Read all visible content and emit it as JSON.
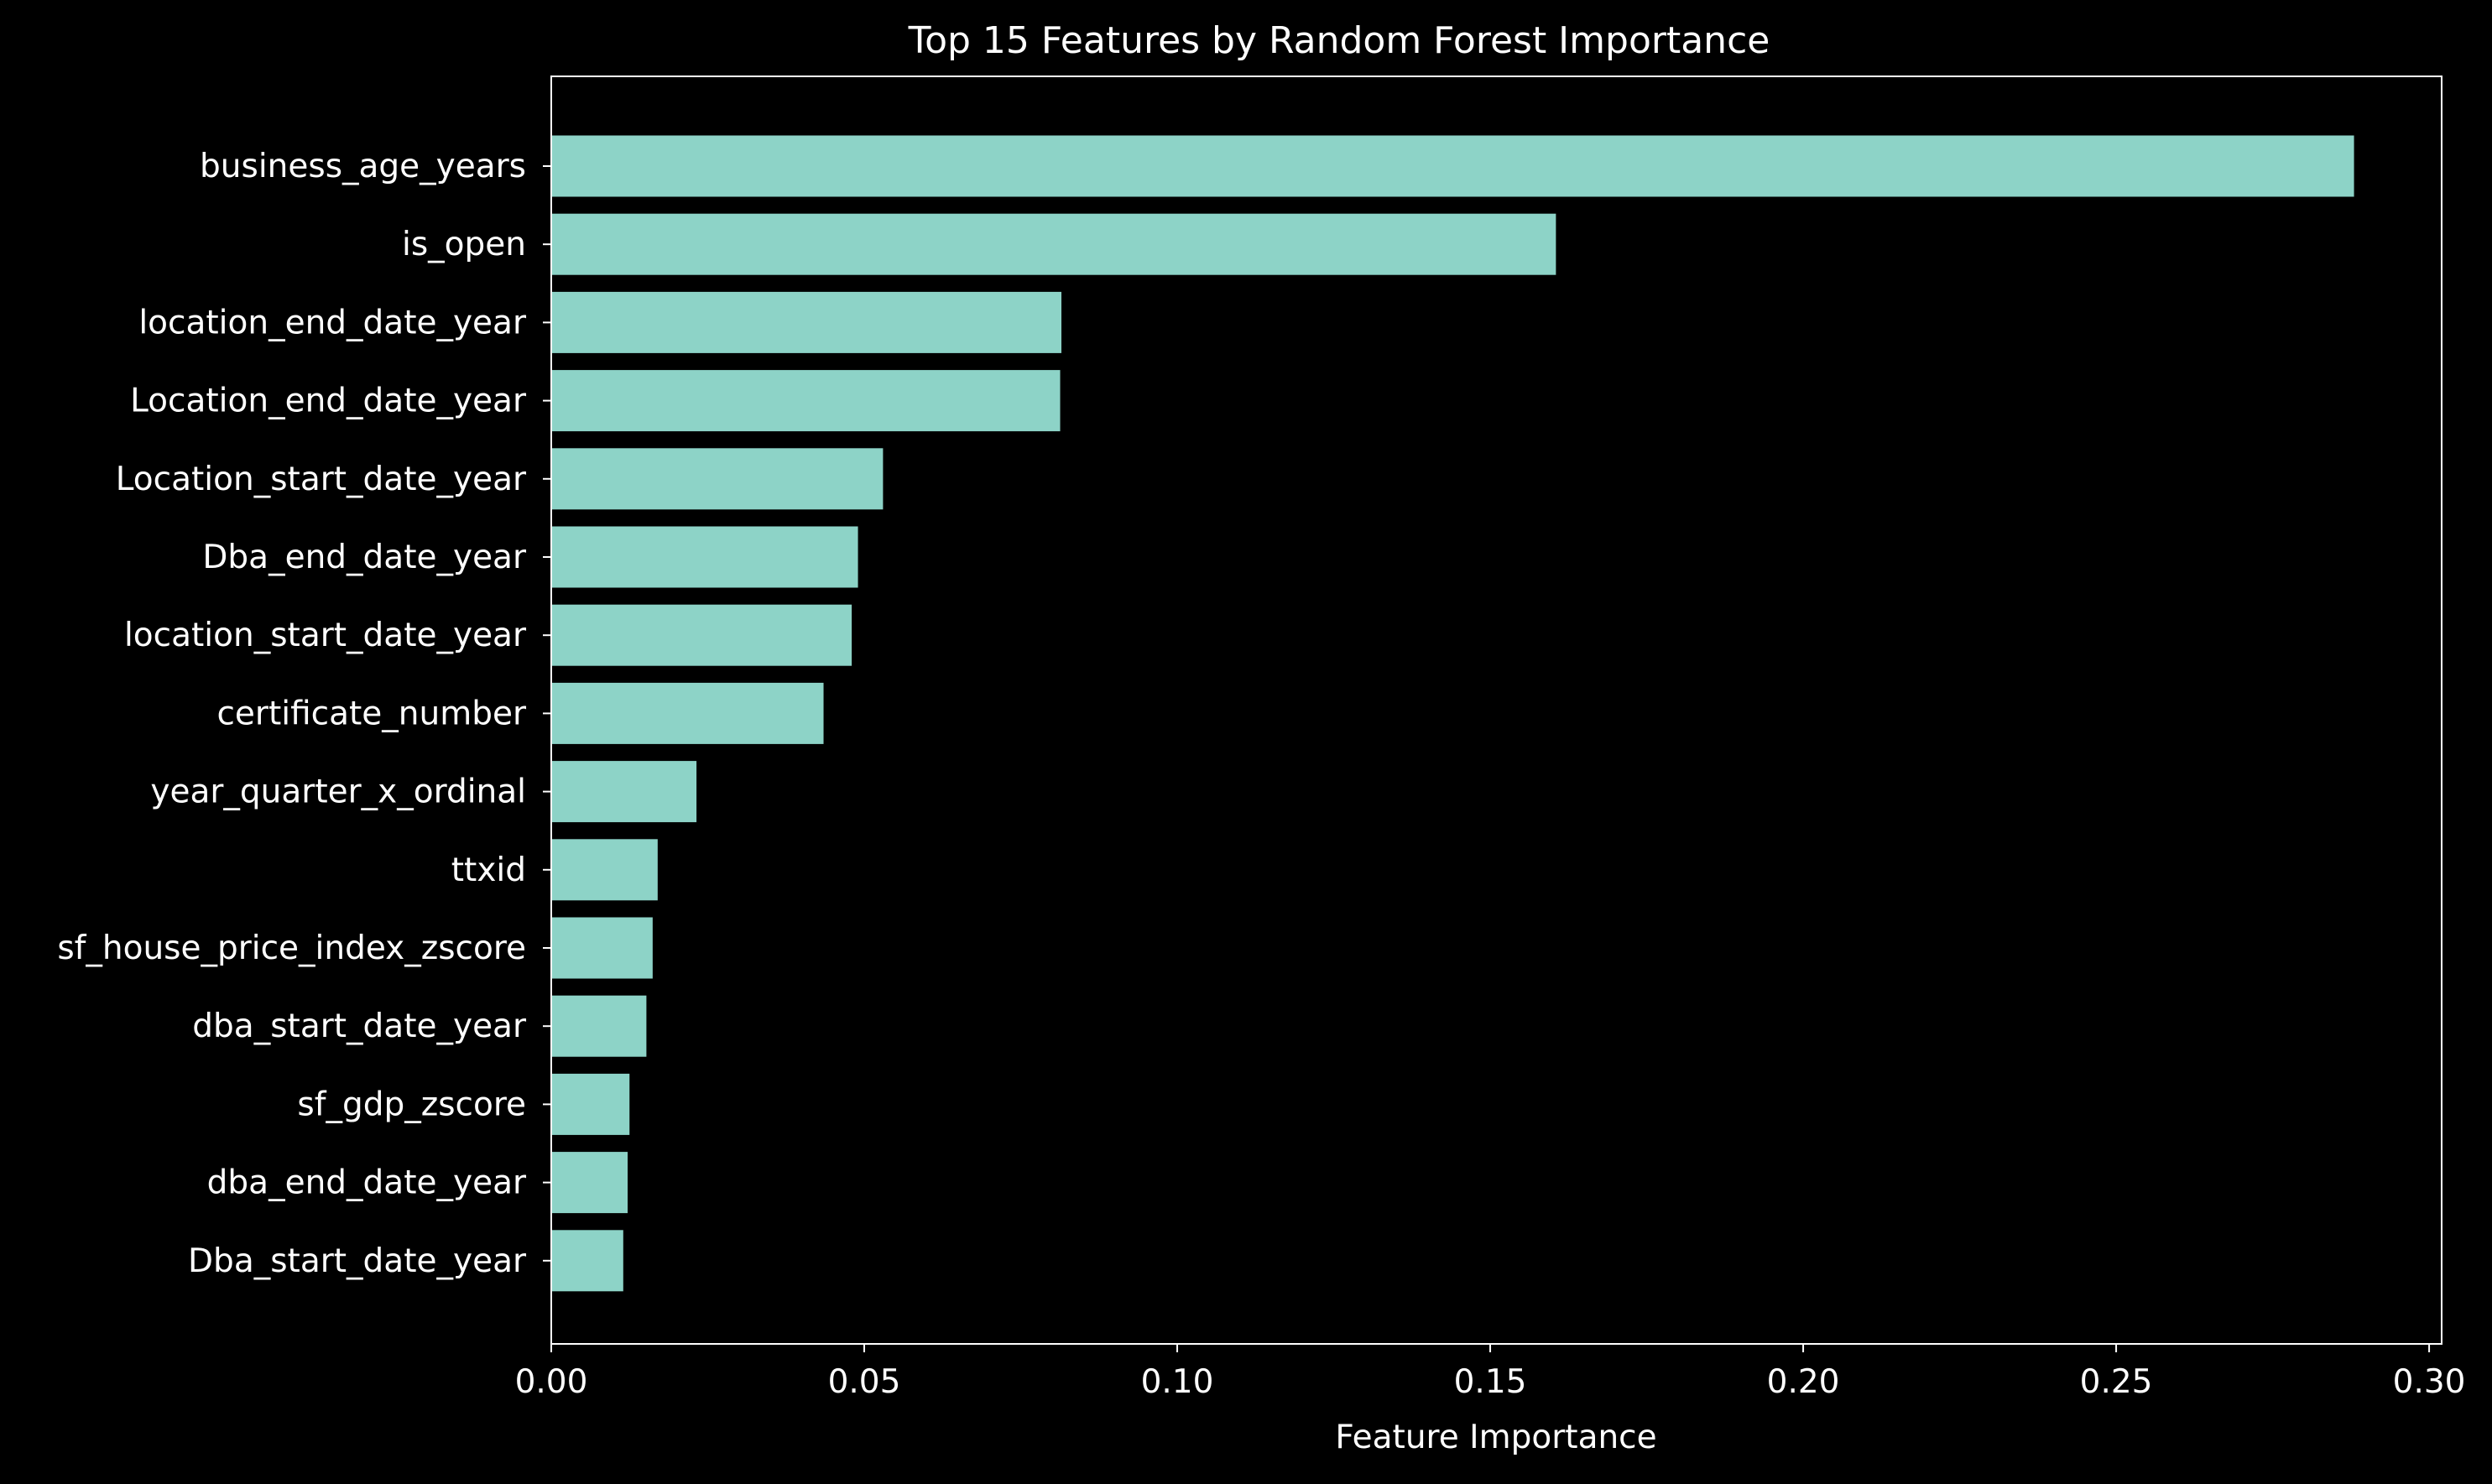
{
  "chart_data": {
    "type": "bar",
    "orientation": "horizontal",
    "title": "Top 15 Features by Random Forest Importance",
    "xlabel": "Feature Importance",
    "ylabel": "",
    "xlim": [
      0,
      0.302
    ],
    "xticks": [
      {
        "value": 0.0,
        "label": "0.00"
      },
      {
        "value": 0.05,
        "label": "0.05"
      },
      {
        "value": 0.1,
        "label": "0.10"
      },
      {
        "value": 0.15,
        "label": "0.15"
      },
      {
        "value": 0.2,
        "label": "0.20"
      },
      {
        "value": 0.25,
        "label": "0.25"
      },
      {
        "value": 0.3,
        "label": "0.30"
      }
    ],
    "grid": false,
    "legend": "none",
    "bar_color": "#8dd3c7",
    "background_color": "#000000",
    "text_color": "#ffffff",
    "categories": [
      "business_age_years",
      "is_open",
      "location_end_date_year",
      "Location_end_date_year",
      "Location_start_date_year",
      "Dba_end_date_year",
      "location_start_date_year",
      "certificate_number",
      "year_quarter_x_ordinal",
      "ttxid",
      "sf_house_price_index_zscore",
      "dba_start_date_year",
      "sf_gdp_zscore",
      "dba_end_date_year",
      "Dba_start_date_year"
    ],
    "values": [
      0.288,
      0.1605,
      0.0815,
      0.0813,
      0.053,
      0.049,
      0.048,
      0.0435,
      0.0232,
      0.017,
      0.0162,
      0.0152,
      0.0125,
      0.0122,
      0.0115
    ]
  }
}
